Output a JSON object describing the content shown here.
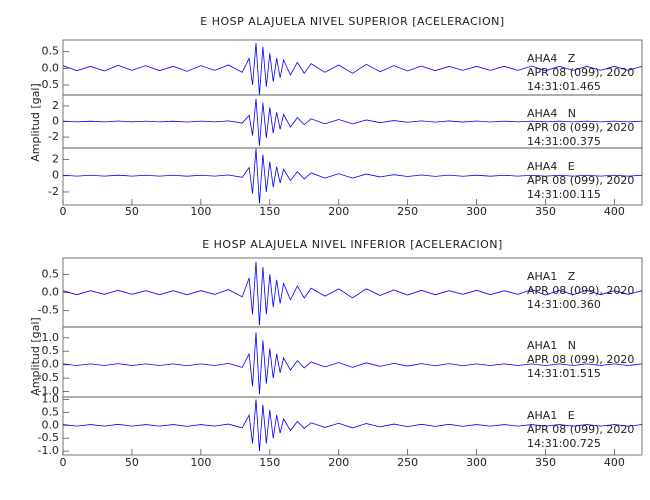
{
  "chart_data": [
    {
      "type": "line",
      "title": "E HOSP ALAJUELA NIVEL SUPERIOR [ACELERACION]",
      "ylabel": "Amplitud [gal]",
      "color": "#0000ff",
      "x": [
        0,
        10,
        20,
        30,
        40,
        50,
        60,
        70,
        80,
        90,
        100,
        110,
        120,
        130,
        135,
        137.5,
        140,
        142.5,
        145,
        147.5,
        150,
        152.5,
        155,
        157.5,
        160,
        165,
        170,
        175,
        180,
        190,
        200,
        210,
        220,
        230,
        240,
        250,
        260,
        270,
        280,
        290,
        300,
        310,
        320,
        330,
        340,
        350,
        360,
        370,
        380,
        390,
        400,
        410,
        420
      ],
      "xlim": [
        0,
        420
      ],
      "xticks": [
        0,
        50,
        100,
        150,
        200,
        250,
        300,
        350,
        400
      ],
      "series": [
        {
          "name": "AHA4   Z",
          "date": "APR 08 (099), 2020",
          "time": "14:31:01.465",
          "ylim": [
            -0.8,
            0.85
          ],
          "yticks": [
            -0.5,
            {
              "value": 0,
              "label": "0.0"
            },
            0.5
          ],
          "values": [
            0.08,
            -0.07,
            0.06,
            -0.08,
            0.09,
            -0.06,
            0.08,
            -0.07,
            0.06,
            -0.09,
            0.08,
            -0.06,
            0.1,
            -0.12,
            0.3,
            -0.5,
            0.75,
            -0.8,
            0.65,
            -0.55,
            0.45,
            -0.4,
            0.3,
            -0.28,
            0.25,
            -0.2,
            0.18,
            -0.15,
            0.14,
            -0.12,
            0.1,
            -0.15,
            0.12,
            -0.1,
            0.08,
            -0.08,
            0.07,
            -0.07,
            0.06,
            -0.06,
            0.06,
            -0.06,
            0.06,
            -0.06,
            0.07,
            -0.07,
            0.06,
            -0.06,
            0.06,
            -0.06,
            0.06,
            -0.06,
            0.06
          ]
        },
        {
          "name": "AHA4   N",
          "date": "APR 08 (099), 2020",
          "time": "14:31:00.375",
          "ylim": [
            -3.4,
            3.4
          ],
          "yticks": [
            -2,
            0,
            2
          ],
          "values": [
            0.05,
            -0.05,
            0.04,
            -0.05,
            0.06,
            -0.05,
            0.05,
            -0.05,
            0.04,
            -0.06,
            0.05,
            -0.05,
            0.08,
            -0.2,
            0.8,
            -1.8,
            2.9,
            -3.1,
            2.4,
            -2.1,
            1.8,
            -1.5,
            1.2,
            -1,
            0.9,
            -0.7,
            0.5,
            -0.4,
            0.35,
            -0.3,
            0.25,
            -0.3,
            0.2,
            -0.15,
            0.12,
            -0.1,
            0.08,
            -0.08,
            0.07,
            -0.07,
            0.06,
            -0.06,
            0.05,
            -0.05,
            0.05,
            -0.05,
            0.05,
            -0.05,
            0.05,
            -0.05,
            0.05,
            -0.05,
            0.05
          ]
        },
        {
          "name": "AHA4   E",
          "date": "APR 08 (099), 2020",
          "time": "14:31:00.115",
          "ylim": [
            -3.6,
            3.4
          ],
          "yticks": [
            -2,
            0,
            2
          ],
          "values": [
            0.05,
            -0.05,
            0.05,
            -0.05,
            0.06,
            -0.05,
            0.05,
            -0.05,
            0.05,
            -0.06,
            0.05,
            -0.05,
            0.08,
            -0.2,
            1,
            -2.2,
            3.3,
            -3.4,
            2.6,
            -2,
            1.7,
            -1.4,
            1.1,
            -0.9,
            0.8,
            -0.6,
            0.5,
            -0.4,
            0.35,
            -0.3,
            0.25,
            -0.3,
            0.2,
            -0.15,
            0.12,
            -0.1,
            0.08,
            -0.08,
            0.07,
            -0.07,
            0.06,
            -0.06,
            0.05,
            -0.05,
            0.05,
            -0.05,
            0.05,
            -0.05,
            0.05,
            -0.05,
            0.05,
            -0.05,
            0.05
          ]
        }
      ]
    },
    {
      "type": "line",
      "title": "E HOSP ALAJUELA NIVEL INFERIOR [ACELERACION]",
      "ylabel": "Amplitud [gal]",
      "color": "#0000ff",
      "x": [
        0,
        10,
        20,
        30,
        40,
        50,
        60,
        70,
        80,
        90,
        100,
        110,
        120,
        130,
        135,
        137.5,
        140,
        142.5,
        145,
        147.5,
        150,
        152.5,
        155,
        157.5,
        160,
        165,
        170,
        175,
        180,
        190,
        200,
        210,
        220,
        230,
        240,
        250,
        260,
        270,
        280,
        290,
        300,
        310,
        320,
        330,
        340,
        350,
        360,
        370,
        380,
        390,
        400,
        410,
        420
      ],
      "xlim": [
        0,
        420
      ],
      "xticks": [
        0,
        50,
        100,
        150,
        200,
        250,
        300,
        350,
        400
      ],
      "series": [
        {
          "name": "AHA1   Z",
          "date": "APR 08 (099), 2020",
          "time": "14:31:00.360",
          "ylim": [
            -0.95,
            0.95
          ],
          "yticks": [
            -0.5,
            {
              "value": 0,
              "label": "0.0"
            },
            0.5
          ],
          "values": [
            0.05,
            -0.06,
            0.05,
            -0.05,
            0.06,
            -0.05,
            0.05,
            -0.06,
            0.05,
            -0.06,
            0.05,
            -0.05,
            0.08,
            -0.12,
            0.4,
            -0.6,
            0.85,
            -0.9,
            0.7,
            -0.6,
            0.5,
            -0.4,
            0.35,
            -0.3,
            0.25,
            -0.2,
            0.18,
            -0.15,
            0.12,
            -0.1,
            0.1,
            -0.15,
            0.1,
            -0.08,
            0.07,
            -0.07,
            0.06,
            -0.06,
            0.05,
            -0.05,
            0.06,
            -0.06,
            0.05,
            -0.05,
            0.08,
            -0.07,
            0.06,
            -0.06,
            0.06,
            -0.06,
            0.05,
            -0.05,
            0.05
          ]
        },
        {
          "name": "AHA1   N",
          "date": "APR 08 (099), 2020",
          "time": "14:31:01.515",
          "ylim": [
            -1.2,
            1.4
          ],
          "yticks": [
            {
              "value": -1,
              "label": "-1.0"
            },
            -0.5,
            {
              "value": 0,
              "label": "0.0"
            },
            0.5,
            {
              "value": 1,
              "label": "1.0"
            }
          ],
          "values": [
            0.03,
            -0.03,
            0.03,
            -0.03,
            0.04,
            -0.03,
            0.03,
            -0.03,
            0.03,
            -0.04,
            0.03,
            -0.03,
            0.05,
            -0.1,
            0.4,
            -0.8,
            1.2,
            -1.1,
            0.9,
            -0.7,
            0.6,
            -0.5,
            0.4,
            -0.3,
            0.25,
            -0.2,
            0.15,
            -0.12,
            0.1,
            -0.08,
            0.08,
            -0.1,
            0.07,
            -0.06,
            0.05,
            -0.05,
            0.04,
            -0.04,
            0.04,
            -0.04,
            0.03,
            -0.03,
            0.03,
            -0.03,
            0.03,
            -0.03,
            0.03,
            -0.03,
            0.03,
            -0.03,
            0.03,
            -0.03,
            0.03
          ]
        },
        {
          "name": "AHA1   E",
          "date": "APR 08 (099), 2020",
          "time": "14:31:00.725",
          "ylim": [
            -1.15,
            1.1
          ],
          "yticks": [
            {
              "value": -1,
              "label": "-1.0"
            },
            -0.5,
            {
              "value": 0,
              "label": "0.0"
            },
            0.5,
            {
              "value": 1,
              "label": "1.0"
            }
          ],
          "values": [
            0.03,
            -0.03,
            0.03,
            -0.03,
            0.04,
            -0.03,
            0.03,
            -0.03,
            0.03,
            -0.04,
            0.03,
            -0.03,
            0.05,
            -0.1,
            0.4,
            -0.7,
            1,
            -1,
            0.8,
            -0.7,
            0.6,
            -0.5,
            0.4,
            -0.3,
            0.25,
            -0.2,
            0.15,
            -0.12,
            0.1,
            -0.08,
            0.08,
            -0.1,
            0.07,
            -0.06,
            0.05,
            -0.05,
            0.04,
            -0.04,
            0.04,
            -0.04,
            0.03,
            -0.03,
            0.03,
            -0.03,
            0.03,
            -0.03,
            0.03,
            -0.03,
            0.03,
            -0.03,
            0.03,
            -0.03,
            0.03
          ]
        }
      ]
    }
  ]
}
